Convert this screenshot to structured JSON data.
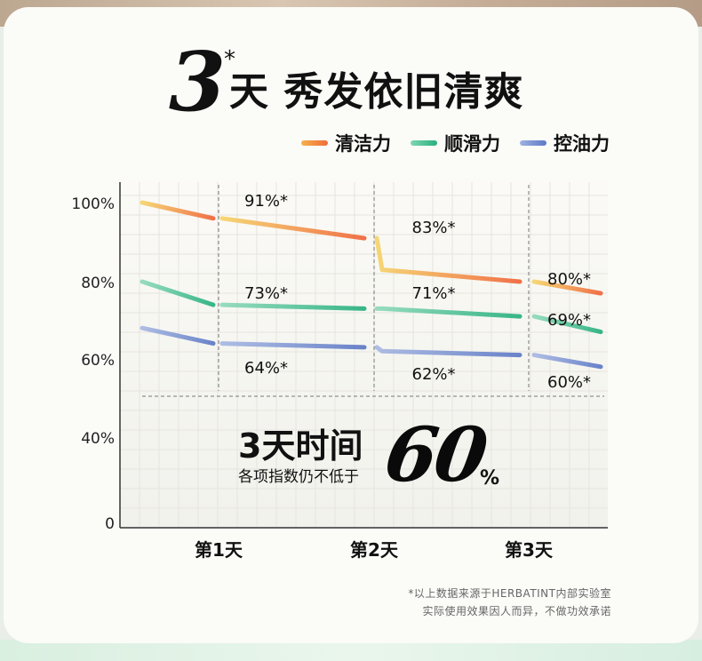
{
  "header": {
    "big_number": "3",
    "star": "*",
    "title": "天 秀发依旧清爽"
  },
  "legend": [
    {
      "label": "清洁力",
      "color": "#f08a3c"
    },
    {
      "label": "顺滑力",
      "color": "#3fbf8f"
    },
    {
      "label": "控油力",
      "color": "#6f86c9"
    }
  ],
  "chart_data": {
    "type": "line",
    "categories": [
      "第1天",
      "第2天",
      "第3天"
    ],
    "y_ticks": [
      "0",
      "40%",
      "60%",
      "80%",
      "100%"
    ],
    "y_tick_values": [
      0,
      40,
      60,
      80,
      100
    ],
    "ylim": [
      0,
      100
    ],
    "grid": true,
    "series": [
      {
        "name": "清洁力",
        "color_start": "#f5d36a",
        "color_end": "#f0653a",
        "points": [
          [
            0,
            100
          ],
          [
            0.5,
            96
          ],
          [
            1,
            91
          ],
          [
            1.5,
            83
          ],
          [
            2,
            80
          ],
          [
            2.5,
            77
          ]
        ],
        "labels": [
          {
            "at": [
              0.55,
              91
            ],
            "text": "91%*"
          },
          {
            "at": [
              1.55,
              83
            ],
            "text": "83%*"
          },
          {
            "at": [
              2.55,
              80
            ],
            "text": "80%*"
          }
        ]
      },
      {
        "name": "顺滑力",
        "color_start": "#8ed9b9",
        "color_end": "#27b07e",
        "points": [
          [
            0,
            80
          ],
          [
            0.5,
            74
          ],
          [
            1,
            73
          ],
          [
            1.5,
            73
          ],
          [
            2,
            71
          ],
          [
            2.5,
            67
          ]
        ],
        "labels": [
          {
            "at": [
              0.55,
              73
            ],
            "text": "73%*"
          },
          {
            "at": [
              1.55,
              71
            ],
            "text": "71%*"
          },
          {
            "at": [
              2.55,
              69
            ],
            "text": "69%*"
          }
        ]
      },
      {
        "name": "控油力",
        "color_start": "#a8b8e2",
        "color_end": "#5d79c6",
        "points": [
          [
            0,
            68
          ],
          [
            0.5,
            64
          ],
          [
            1,
            63
          ],
          [
            1.5,
            62
          ],
          [
            2,
            61
          ],
          [
            2.5,
            58
          ]
        ],
        "labels": [
          {
            "at": [
              0.55,
              64
            ],
            "text": "64%*"
          },
          {
            "at": [
              1.55,
              62
            ],
            "text": "62%*"
          },
          {
            "at": [
              2.55,
              60
            ],
            "text": "60%*"
          }
        ]
      }
    ]
  },
  "callout": {
    "line1": "3天时间",
    "line2": "各项指数仍不低于",
    "number": "60",
    "percent": "%"
  },
  "footnote": {
    "line1": "*以上数据来源于HERBATINT内部实验室",
    "line2": "实际使用效果因人而异，不做功效承诺"
  }
}
